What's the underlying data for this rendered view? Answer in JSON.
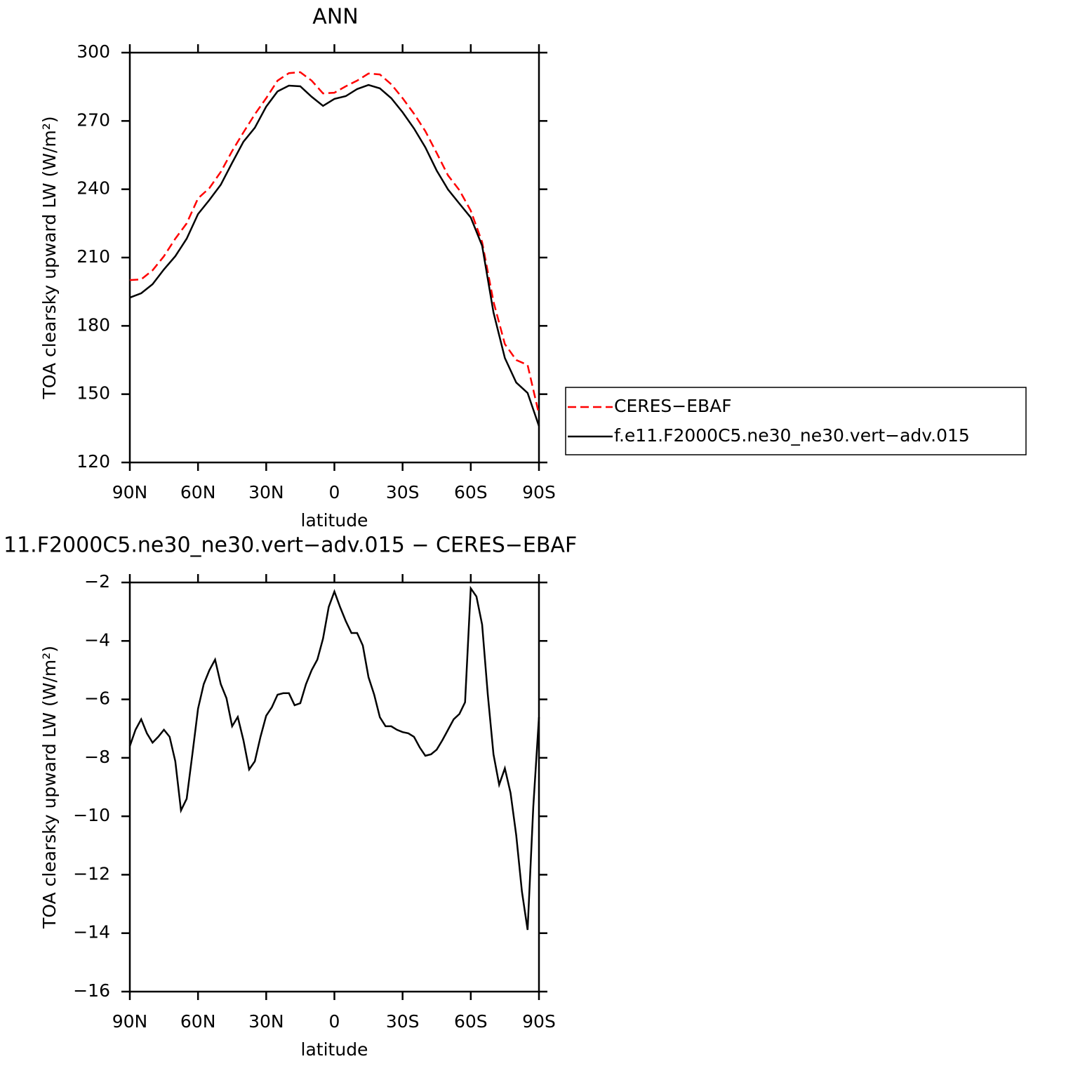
{
  "chart_data": [
    {
      "type": "line",
      "title": "ANN",
      "xlabel": "latitude",
      "ylabel": "TOA clearsky upward LW (W/m²)",
      "xlim": [
        90,
        -90
      ],
      "ylim": [
        120,
        300
      ],
      "xticks": [
        {
          "value": 90,
          "label": "90N"
        },
        {
          "value": 60,
          "label": "60N"
        },
        {
          "value": 30,
          "label": "30N"
        },
        0,
        {
          "value": -30,
          "label": "30S"
        },
        {
          "value": -60,
          "label": "60S"
        },
        {
          "value": -90,
          "label": "90S"
        }
      ],
      "yticks": [
        120,
        150,
        180,
        210,
        240,
        270,
        300
      ],
      "legend": "outside-right",
      "x": [
        90,
        85,
        80,
        75,
        70,
        65,
        60,
        55,
        50,
        45,
        40,
        35,
        30,
        25,
        20,
        15,
        10,
        5,
        0,
        -5,
        -10,
        -15,
        -20,
        -25,
        -30,
        -35,
        -40,
        -45,
        -50,
        -55,
        -60,
        -65,
        -70,
        -75,
        -80,
        -85,
        -90
      ],
      "series": [
        {
          "name": "CERES−EBAF",
          "color": "#ff0000",
          "dash": "dashed",
          "values": [
            200.1,
            200.4,
            204.4,
            210.6,
            218.3,
            225,
            236,
            240.5,
            247.6,
            256.8,
            265,
            272.9,
            280,
            287.7,
            291,
            291.4,
            287.7,
            282.1,
            282.4,
            285.2,
            287.7,
            290.8,
            290.4,
            286.1,
            280,
            273.2,
            265.5,
            255.9,
            246.1,
            239.6,
            230.6,
            216.8,
            190.6,
            172,
            165,
            162.8,
            141.2
          ]
        },
        {
          "name": "f.e11.F2000C5.ne30_ne30.vert−adv.015",
          "color": "#000000",
          "dash": "solid",
          "values": [
            192.4,
            194.3,
            198.3,
            204.8,
            210.6,
            218.3,
            229.1,
            235.3,
            242,
            251.6,
            260.9,
            267,
            276.3,
            283,
            285.5,
            285.2,
            280.6,
            276.6,
            279.7,
            280.9,
            284,
            285.8,
            284.3,
            280,
            273.8,
            266.7,
            258.4,
            248.2,
            239.9,
            233.7,
            227.6,
            215.2,
            185.9,
            165.9,
            155.1,
            150.5,
            136
          ]
        }
      ]
    },
    {
      "type": "line",
      "title": "11.F2000C5.ne30_ne30.vert−adv.015 − CERES−EBAF",
      "xlabel": "latitude",
      "ylabel": "TOA clearsky upward LW (W/m²)",
      "xlim": [
        90,
        -90
      ],
      "ylim": [
        -16,
        -2
      ],
      "xticks": [
        {
          "value": 90,
          "label": "90N"
        },
        {
          "value": 60,
          "label": "60N"
        },
        {
          "value": 30,
          "label": "30N"
        },
        0,
        {
          "value": -30,
          "label": "30S"
        },
        {
          "value": -60,
          "label": "60S"
        },
        {
          "value": -90,
          "label": "90S"
        }
      ],
      "yticks": [
        {
          "value": -16,
          "label": "−16"
        },
        {
          "value": -14,
          "label": "−14"
        },
        {
          "value": -12,
          "label": "−12"
        },
        {
          "value": -10,
          "label": "−10"
        },
        {
          "value": -8,
          "label": "−8"
        },
        {
          "value": -6,
          "label": "−6"
        },
        {
          "value": -4,
          "label": "−4"
        },
        {
          "value": -2,
          "label": "−2"
        }
      ],
      "x": [
        90,
        87.5,
        85,
        82.5,
        80,
        77.5,
        75,
        72.5,
        70,
        67.5,
        65,
        62.5,
        60,
        57.5,
        55,
        52.5,
        50,
        47.5,
        45,
        42.5,
        40,
        37.5,
        35,
        32.5,
        30,
        27.5,
        25,
        22.5,
        20,
        17.5,
        15,
        12.5,
        10,
        7.5,
        5,
        2.5,
        0,
        -2.5,
        -5,
        -7.5,
        -10,
        -12.5,
        -15,
        -17.5,
        -20,
        -22.5,
        -25,
        -27.5,
        -30,
        -32.5,
        -35,
        -37.5,
        -40,
        -42.5,
        -45,
        -47.5,
        -50,
        -52.5,
        -55,
        -57.5,
        -60,
        -62.5,
        -65,
        -67.5,
        -70,
        -72.5,
        -75,
        -77.5,
        -80,
        -82.5,
        -85,
        -87.5,
        -90
      ],
      "series": [
        {
          "color": "#000000",
          "dash": "solid",
          "values": [
            -7.6,
            -7.04,
            -6.68,
            -7.16,
            -7.48,
            -7.28,
            -7.04,
            -7.28,
            -8.12,
            -9.8,
            -9.4,
            -7.88,
            -6.32,
            -5.48,
            -5.0,
            -4.64,
            -5.48,
            -5.96,
            -6.92,
            -6.6,
            -7.4,
            -8.4,
            -8.12,
            -7.28,
            -6.56,
            -6.27,
            -5.84,
            -5.79,
            -5.79,
            -6.2,
            -6.13,
            -5.48,
            -5.0,
            -4.64,
            -3.92,
            -2.84,
            -2.31,
            -2.84,
            -3.32,
            -3.73,
            -3.73,
            -4.16,
            -5.24,
            -5.84,
            -6.61,
            -6.92,
            -6.92,
            -7.04,
            -7.12,
            -7.16,
            -7.28,
            -7.64,
            -7.93,
            -7.88,
            -7.72,
            -7.4,
            -7.04,
            -6.68,
            -6.5,
            -6.1,
            -2.2,
            -2.48,
            -3.44,
            -5.84,
            -7.88,
            -8.92,
            -8.36,
            -9.2,
            -10.65,
            -12.57,
            -13.89,
            -9.68,
            -6.61
          ]
        }
      ]
    }
  ]
}
